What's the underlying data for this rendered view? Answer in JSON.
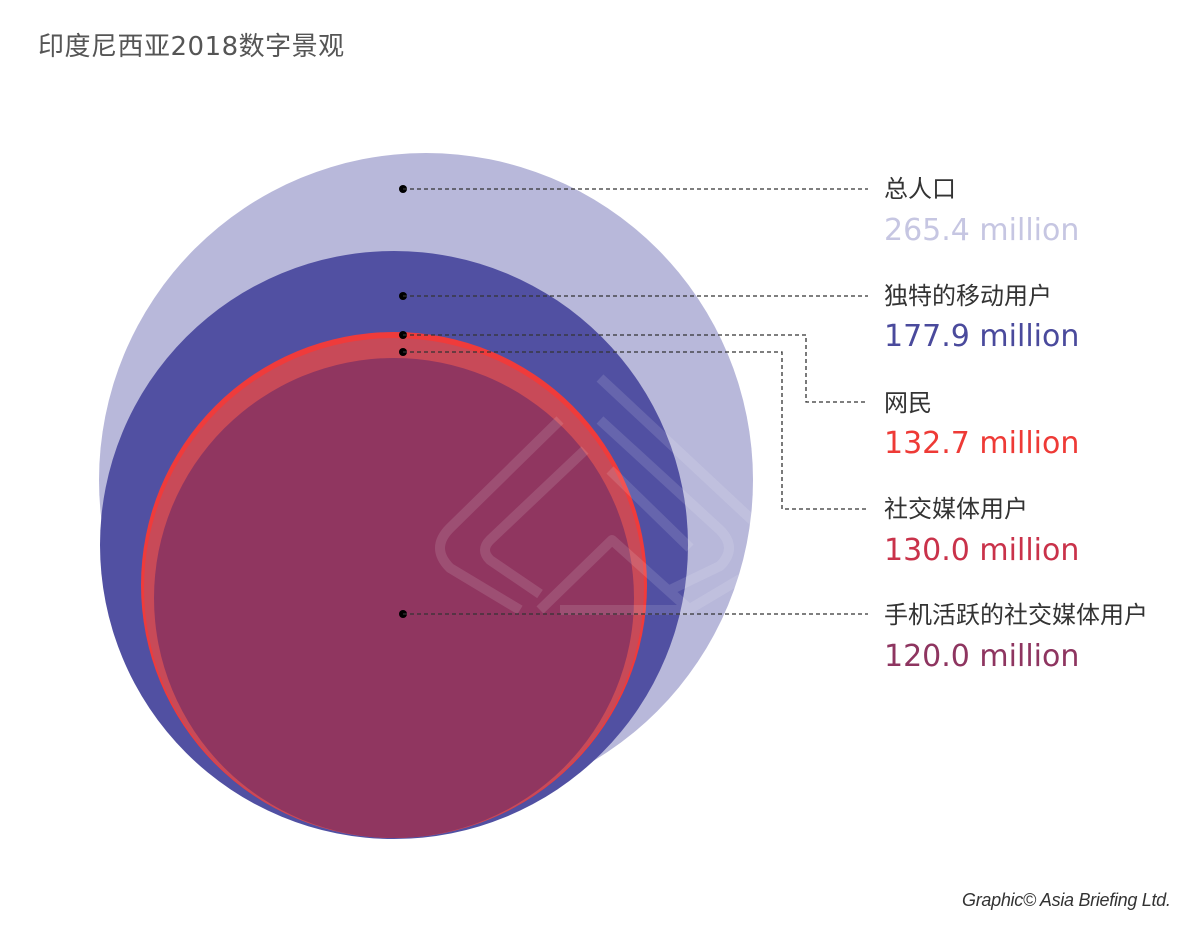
{
  "title": "印度尼西亚2018数字景观",
  "credit": "Graphic© Asia Briefing Ltd.",
  "chart_data": {
    "type": "nested-circle",
    "unit": "million",
    "series": [
      {
        "name": "总人口",
        "value": 265.4,
        "value_label": "265.4 million",
        "color": "#b8b8da",
        "label_color": "#c6c6e2"
      },
      {
        "name": "独特的移动用户",
        "value": 177.9,
        "value_label": "177.9 million",
        "color": "#5150a2",
        "label_color": "#4a4a9c"
      },
      {
        "name": "网民",
        "value": 132.7,
        "value_label": "132.7 million",
        "color": "#ef3b3b",
        "label_color": "#ee3a36"
      },
      {
        "name": "社交媒体用户",
        "value": 130.0,
        "value_label": "130.0 million",
        "color": "#c84a58",
        "label_color": "#c9324a"
      },
      {
        "name": "手机活跃的社交媒体用户",
        "value": 120.0,
        "value_label": "120.0 million",
        "color": "#903660",
        "label_color": "#8e3560"
      }
    ]
  }
}
